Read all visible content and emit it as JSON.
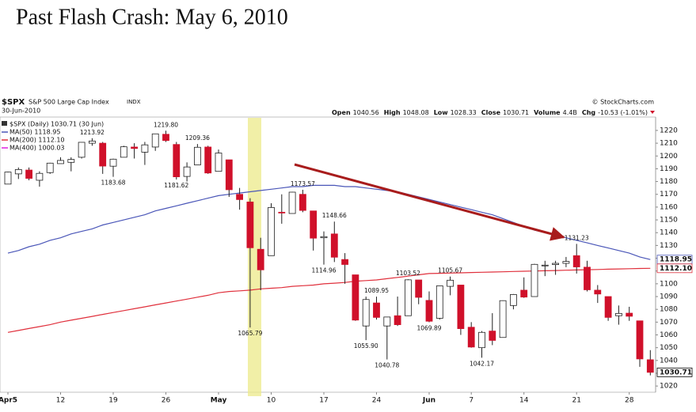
{
  "title": "Past Flash Crash: May 6, 2010",
  "chart_data": {
    "type": "candlestick",
    "symbol": "$SPX",
    "symbol_name": "S&P 500 Large Cap Index",
    "exchange": "INDX",
    "date": "30-Jun-2010",
    "credit": "© StockCharts.com",
    "quote": [
      {
        "label": "Open",
        "value": "1040.56"
      },
      {
        "label": "High",
        "value": "1048.08"
      },
      {
        "label": "Low",
        "value": "1028.33"
      },
      {
        "label": "Close",
        "value": "1030.71"
      },
      {
        "label": "Volume",
        "value": "4.4B"
      },
      {
        "label": "Chg",
        "value": "-10.53 (-1.01%)"
      }
    ],
    "price_legend": "$SPX (Daily) 1030.71 (30 Jun)",
    "up_color": "#ffffff",
    "down_color": "#d0102a",
    "categories": [
      "Apr5",
      null,
      null,
      null,
      null,
      "12",
      null,
      null,
      null,
      null,
      "19",
      null,
      null,
      null,
      null,
      "26",
      null,
      null,
      null,
      null,
      "May",
      null,
      null,
      null,
      null,
      "10",
      null,
      null,
      null,
      null,
      "17",
      null,
      null,
      null,
      null,
      "24",
      null,
      null,
      null,
      null,
      "Jun",
      null,
      null,
      null,
      "7",
      null,
      null,
      null,
      null,
      "14",
      null,
      null,
      null,
      null,
      "21",
      null,
      null,
      null,
      null,
      "28",
      null,
      null
    ],
    "open": [
      1178,
      1186,
      1189,
      1181,
      1187,
      1194,
      1195,
      1199,
      1210,
      1210,
      1192,
      1199,
      1207,
      1203,
      1207,
      1217,
      1209,
      1184,
      1193,
      1207,
      1188,
      1197,
      1170,
      1164,
      1127,
      1122,
      1156,
      1155,
      1170,
      1157,
      1136,
      1139,
      1119,
      1107,
      1067,
      1085,
      1067,
      1075,
      1075,
      1103,
      1087,
      1073,
      1098,
      1099,
      1066,
      1050,
      1063,
      1058,
      1083,
      1095,
      1090,
      1114,
      1115,
      1116,
      1122,
      1113,
      1095,
      1090,
      1075,
      1077,
      1071,
      1040.56
    ],
    "high": [
      1187.7,
      1191,
      1191,
      1188,
      1194.7,
      1199,
      1199,
      1210.7,
      1213.92,
      1211,
      1197.9,
      1208,
      1210,
      1211,
      1217.3,
      1219.8,
      1211,
      1195,
      1209.36,
      1208,
      1205,
      1197,
      1175,
      1167,
      1136,
      1163,
      1170,
      1172,
      1173.57,
      1157,
      1141,
      1148.66,
      1124,
      1107,
      1090,
      1089.95,
      1074,
      1090,
      1103.52,
      1103,
      1094,
      1098.4,
      1105.67,
      1099,
      1070,
      1063,
      1077,
      1087,
      1092,
      1105,
      1115.6,
      1118,
      1118,
      1121,
      1131.23,
      1118,
      1099,
      1090,
      1083,
      1082,
      1071,
      1048.08
    ],
    "low": [
      1178,
      1182,
      1181,
      1176,
      1186,
      1194,
      1188,
      1198,
      1208,
      1186,
      1183.68,
      1199,
      1198,
      1193,
      1204,
      1211,
      1181.62,
      1180,
      1193,
      1186,
      1188,
      1168,
      1158,
      1065.79,
      1095,
      1122,
      1147,
      1155,
      1156,
      1126,
      1114.96,
      1117,
      1100,
      1071,
      1055.9,
      1072,
      1040.78,
      1067,
      1075,
      1084,
      1069.89,
      1072,
      1091,
      1060,
      1050,
      1042.17,
      1052,
      1058,
      1080,
      1089,
      1090,
      1106,
      1107,
      1113,
      1108,
      1094,
      1085,
      1071,
      1068,
      1071,
      1035,
      1028.33
    ],
    "close": [
      1187.4,
      1189.4,
      1182.5,
      1186.4,
      1194.4,
      1196.5,
      1197.3,
      1210.7,
      1211.7,
      1192.1,
      1197.5,
      1207.2,
      1205.9,
      1208.7,
      1217.3,
      1212.1,
      1183.7,
      1191.4,
      1206.8,
      1186.7,
      1202.3,
      1173.6,
      1165.9,
      1128.2,
      1110.9,
      1159.7,
      1155.8,
      1171.7,
      1157.4,
      1135.7,
      1136.9,
      1120.8,
      1115.1,
      1071.6,
      1087.7,
      1073.7,
      1074,
      1068,
      1103.1,
      1089.4,
      1070.7,
      1098.4,
      1102.8,
      1064.9,
      1050.5,
      1062,
      1055.7,
      1086.8,
      1091.6,
      1089.6,
      1115.2,
      1114.6,
      1116,
      1117.5,
      1113.2,
      1095.3,
      1092,
      1073.7,
      1076.8,
      1074.6,
      1041.2,
      1030.71
    ],
    "high_labels": [
      null,
      null,
      null,
      null,
      null,
      null,
      null,
      null,
      "1213.92",
      null,
      null,
      null,
      null,
      null,
      null,
      "1219.80",
      null,
      null,
      "1209.36",
      null,
      null,
      null,
      null,
      null,
      null,
      null,
      null,
      null,
      "1173.57",
      null,
      null,
      "1148.66",
      null,
      null,
      null,
      "1089.95",
      null,
      null,
      "1103.52",
      null,
      null,
      null,
      "1105.67",
      null,
      null,
      null,
      null,
      null,
      null,
      null,
      null,
      null,
      null,
      null,
      "1131.23",
      null,
      null,
      null,
      null,
      null,
      null,
      null
    ],
    "low_labels": [
      null,
      null,
      null,
      null,
      null,
      null,
      null,
      null,
      null,
      null,
      "1183.68",
      null,
      null,
      null,
      null,
      null,
      "1181.62",
      null,
      null,
      null,
      null,
      null,
      null,
      "1065.79",
      null,
      null,
      null,
      null,
      null,
      null,
      "1114.96",
      null,
      null,
      null,
      "1055.90",
      null,
      "1040.78",
      null,
      null,
      null,
      "1069.89",
      null,
      null,
      null,
      null,
      "1042.17",
      null,
      null,
      null,
      null,
      null,
      null,
      null,
      null,
      null,
      null,
      null,
      null,
      null,
      null,
      null,
      null
    ],
    "moving_averages": [
      {
        "name": "MA(50) 1118.95",
        "color": "#4a56b8",
        "end_label": "1118.95",
        "values": [
          1124,
          1126,
          1129,
          1131,
          1134,
          1136,
          1139,
          1141,
          1143,
          1146,
          1148,
          1150,
          1152,
          1154,
          1157,
          1159,
          1161,
          1163,
          1165,
          1167,
          1169,
          1170,
          1171,
          1172,
          1173,
          1174,
          1175,
          1176,
          1176,
          1177,
          1177,
          1177,
          1176,
          1176,
          1175,
          1174,
          1173,
          1172,
          1170,
          1168,
          1166,
          1164,
          1162,
          1160,
          1158,
          1156,
          1154,
          1151,
          1148,
          1145,
          1142,
          1140,
          1138,
          1136,
          1134,
          1132,
          1130,
          1128,
          1126,
          1124,
          1121,
          1118.95
        ]
      },
      {
        "name": "MA(200) 1112.10",
        "color": "#e0303c",
        "end_label": "1112.10",
        "values": [
          1062,
          1063.5,
          1065,
          1066.5,
          1068,
          1070,
          1071.5,
          1073,
          1074.5,
          1076,
          1077.5,
          1079,
          1080.5,
          1082,
          1083.5,
          1085,
          1086.5,
          1088,
          1089.5,
          1091,
          1093,
          1094,
          1094.5,
          1095,
          1096,
          1096.5,
          1097,
          1098,
          1098.5,
          1099,
          1100,
          1100.5,
          1101,
          1102,
          1102.5,
          1103,
          1104,
          1105,
          1106,
          1107,
          1108,
          1108.2,
          1108.4,
          1108.6,
          1108.8,
          1109,
          1109.2,
          1109.4,
          1109.6,
          1109.8,
          1110,
          1110.2,
          1110.4,
          1110.6,
          1110.8,
          1111,
          1111.2,
          1111.4,
          1111.6,
          1111.8,
          1112,
          1112.1
        ]
      },
      {
        "name": "MA(400) 1000.03",
        "color": "#e020e0"
      }
    ],
    "ylim": [
      1017,
      1228
    ],
    "yticks": [
      1020,
      1030,
      1040,
      1050,
      1060,
      1070,
      1080,
      1090,
      1100,
      1110,
      1120,
      1130,
      1140,
      1150,
      1160,
      1170,
      1180,
      1190,
      1200,
      1210,
      1220
    ],
    "grid": false
  }
}
